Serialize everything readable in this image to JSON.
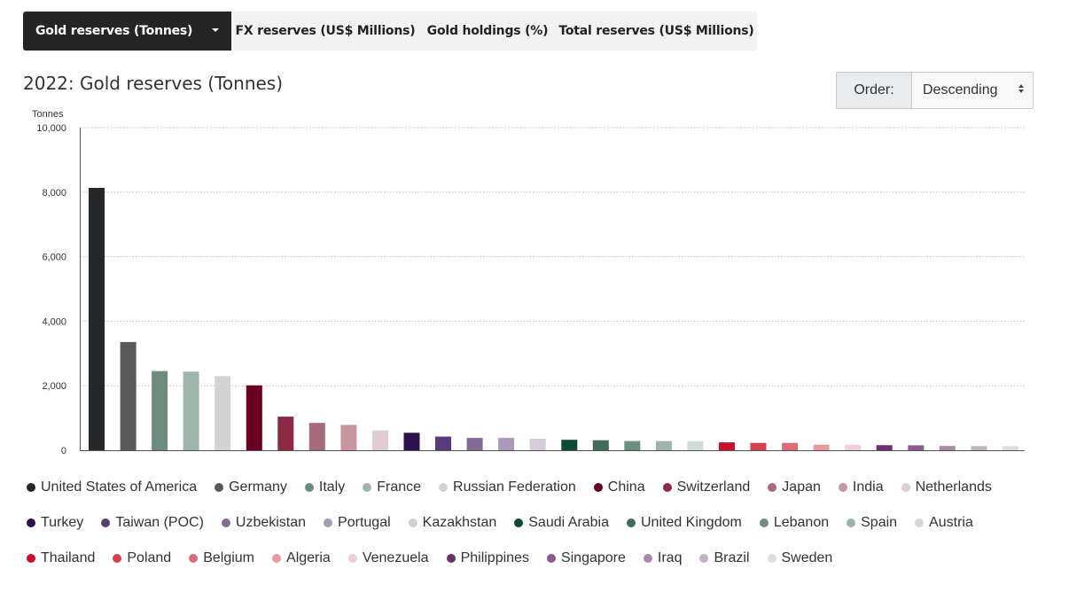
{
  "tabs": [
    {
      "label": "Gold reserves (Tonnes)",
      "active": true
    },
    {
      "label": "FX reserves (US$ Millions)",
      "active": false
    },
    {
      "label": "Gold holdings (%)",
      "active": false
    },
    {
      "label": "Total reserves (US$ Millions)",
      "active": false
    }
  ],
  "order": {
    "label": "Order:",
    "value": "Descending"
  },
  "chart_data": {
    "type": "bar",
    "title": "2022: Gold reserves (Tonnes)",
    "ylabel": "Tonnes",
    "xlabel": "",
    "ylim": [
      0,
      10000
    ],
    "yticks": [
      0,
      2000,
      4000,
      6000,
      8000,
      10000
    ],
    "ytick_labels": [
      "0",
      "2,000",
      "4,000",
      "6,000",
      "8,000",
      "10,000"
    ],
    "grid": true,
    "legend_position": "bottom",
    "categories": [
      "United States of America",
      "Germany",
      "Italy",
      "France",
      "Russian Federation",
      "China",
      "Switzerland",
      "Japan",
      "India",
      "Netherlands",
      "Turkey",
      "Taiwan (POC)",
      "Uzbekistan",
      "Portugal",
      "Kazakhstan",
      "Saudi Arabia",
      "United Kingdom",
      "Lebanon",
      "Spain",
      "Austria",
      "Thailand",
      "Poland",
      "Belgium",
      "Algeria",
      "Venezuela",
      "Philippines",
      "Singapore",
      "Iraq",
      "Brazil",
      "Sweden"
    ],
    "values": [
      8133,
      3355,
      2452,
      2437,
      2299,
      2011,
      1040,
      846,
      787,
      612,
      542,
      424,
      383,
      383,
      356,
      323,
      310,
      287,
      282,
      280,
      244,
      229,
      227,
      174,
      161,
      156,
      154,
      131,
      130,
      126
    ],
    "colors": [
      "#25282a",
      "#58595b",
      "#6e8c7e",
      "#9db5aa",
      "#d3d3d3",
      "#6b0020",
      "#8c2a45",
      "#a66a78",
      "#c8949f",
      "#e3cbd3",
      "#2f0f4c",
      "#5a3a7a",
      "#856a99",
      "#ab98bb",
      "#d6cbdd",
      "#0c4a31",
      "#3f6b57",
      "#6d8f7f",
      "#9db5a9",
      "#d1dbd6",
      "#c8102e",
      "#d2404f",
      "#db6d78",
      "#e89aa3",
      "#f2cdd2",
      "#6f2c6f",
      "#8e5a8e",
      "#ab87ab",
      "#c7b0c7",
      "#e3d7e3"
    ]
  }
}
